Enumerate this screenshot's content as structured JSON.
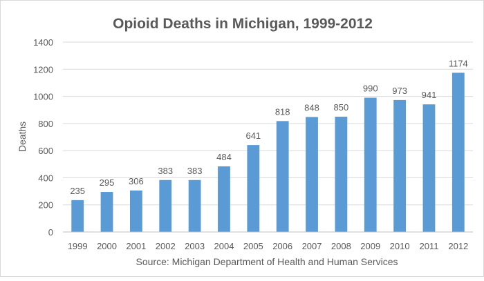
{
  "chart_data": {
    "type": "bar",
    "title": "Opioid Deaths in Michigan, 1999-2012",
    "xlabel": "Source: Michigan Department of Health and Human Services",
    "ylabel": "Deaths",
    "categories": [
      "1999",
      "2000",
      "2001",
      "2002",
      "2003",
      "2004",
      "2005",
      "2006",
      "2007",
      "2008",
      "2009",
      "2010",
      "2011",
      "2012"
    ],
    "values": [
      235,
      295,
      306,
      383,
      383,
      484,
      641,
      818,
      848,
      850,
      990,
      973,
      941,
      1174
    ],
    "ylim": [
      0,
      1400
    ],
    "yticks": [
      0,
      200,
      400,
      600,
      800,
      1000,
      1200,
      1400
    ],
    "grid": true,
    "legend": "none",
    "data_labels": true,
    "bar_color": "#5b9bd5",
    "grid_color": "#d9d9d9",
    "text_color": "#595959"
  }
}
